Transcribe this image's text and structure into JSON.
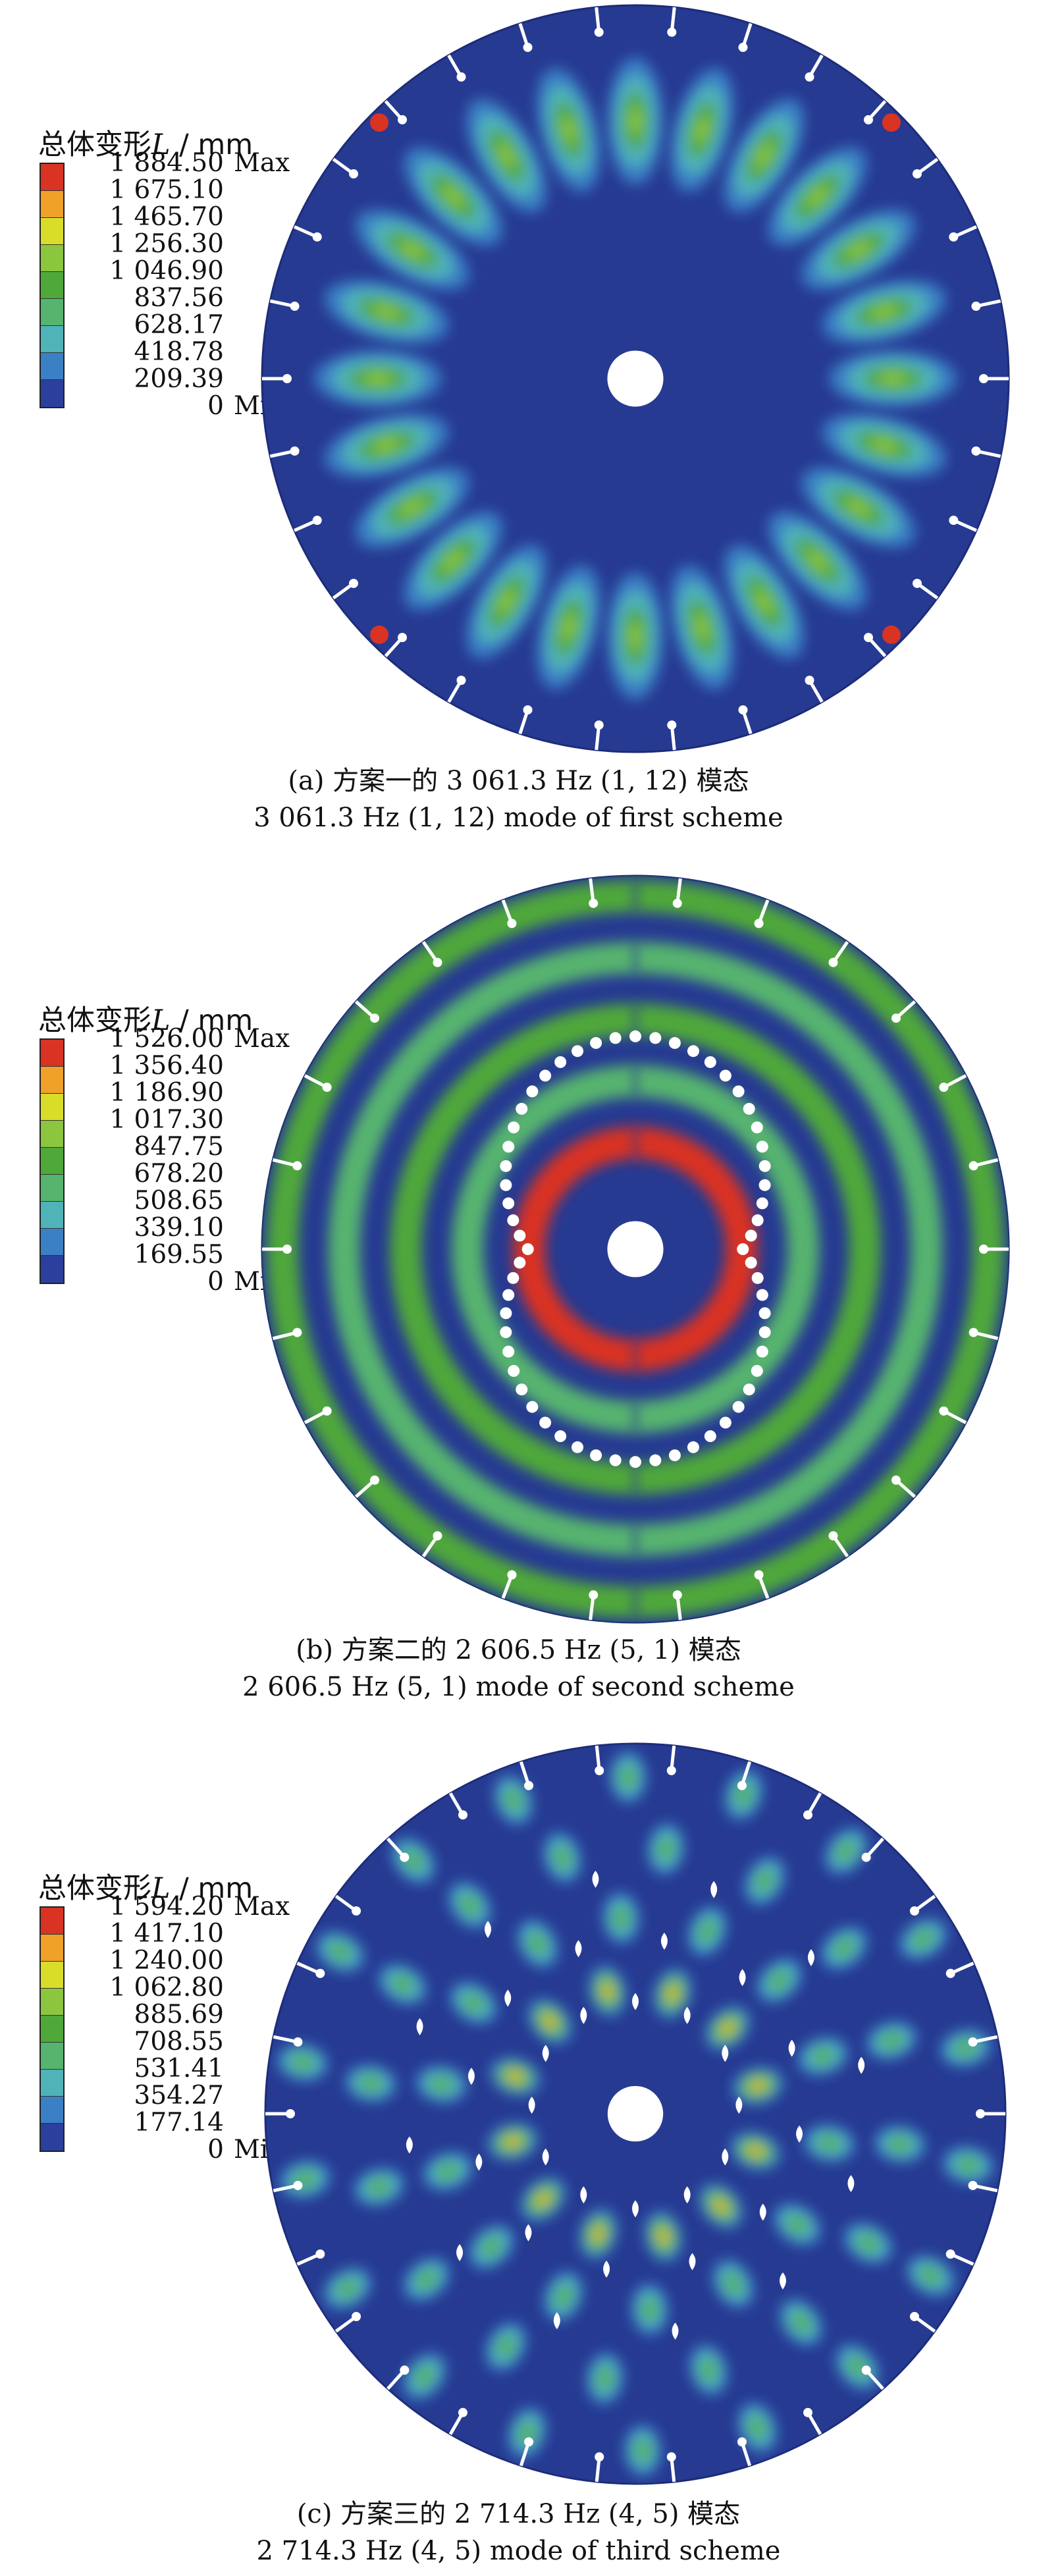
{
  "colors": {
    "scale": [
      "#2b3f9c",
      "#3b7fc5",
      "#4fb3b8",
      "#56b46e",
      "#4fa83a",
      "#8cc63f",
      "#d9dd2a",
      "#f0a12a",
      "#d93324"
    ],
    "background": "#263a92",
    "hole": "#ffffff"
  },
  "panels": [
    {
      "legend": {
        "title_prefix": "总体变形",
        "title_symbol": "L",
        "title_unit": " / mm",
        "labels": [
          "1 884.50",
          "1 675.10",
          "1 465.70",
          "1 256.30",
          "1 046.90",
          "837.56",
          "628.17",
          "418.78",
          "209.39",
          "0"
        ],
        "max_tag": "Max",
        "min_tag": "Min"
      },
      "mode": {
        "modal_frequency_hz": 3061.3,
        "mode_indices": [
          1,
          12
        ],
        "nodal_diameters": 12,
        "nodal_circles": 1,
        "peak_deformation_mm": 1884.5
      },
      "caption_cn": "(a) 方案一的 3 061.3 Hz (1, 12) 模态",
      "caption_en": "3 061.3 Hz (1, 12) mode of first scheme"
    },
    {
      "legend": {
        "title_prefix": "总体变形",
        "title_symbol": "L",
        "title_unit": " / mm",
        "labels": [
          "1 526.00",
          "1 356.40",
          "1 186.90",
          "1 017.30",
          "847.75",
          "678.20",
          "508.65",
          "339.10",
          "169.55",
          "0"
        ],
        "max_tag": "Max",
        "min_tag": "Min"
      },
      "mode": {
        "modal_frequency_hz": 2606.5,
        "mode_indices": [
          5,
          1
        ],
        "nodal_diameters": 1,
        "nodal_circles": 5,
        "peak_deformation_mm": 1526.0
      },
      "caption_cn": "(b) 方案二的 2 606.5 Hz (5, 1) 模态",
      "caption_en": "2 606.5 Hz (5, 1) mode of second scheme"
    },
    {
      "legend": {
        "title_prefix": "总体变形",
        "title_symbol": "L",
        "title_unit": " / mm",
        "labels": [
          "1 594.20",
          "1 417.10",
          "1 240.00",
          "1 062.80",
          "885.69",
          "708.55",
          "531.41",
          "354.27",
          "177.14",
          "0"
        ],
        "max_tag": "Max",
        "min_tag": "Min"
      },
      "mode": {
        "modal_frequency_hz": 2714.3,
        "mode_indices": [
          4,
          5
        ],
        "nodal_diameters": 5,
        "nodal_circles": 4,
        "peak_deformation_mm": 1594.2
      },
      "caption_cn": "(c) 方案三的 2 714.3 Hz (4, 5) 模态",
      "caption_en": "2 714.3 Hz (4, 5) mode of third scheme"
    }
  ]
}
